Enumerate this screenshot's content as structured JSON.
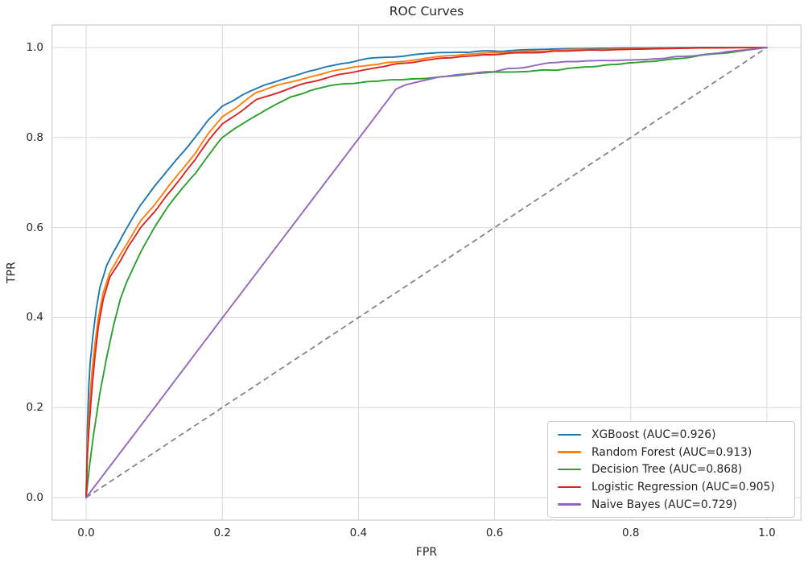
{
  "chart_data": {
    "type": "line",
    "title": "ROC Curves",
    "xlabel": "FPR",
    "ylabel": "TPR",
    "xlim": [
      -0.05,
      1.05
    ],
    "ylim": [
      -0.05,
      1.05
    ],
    "grid": true,
    "legend_position": "lower right",
    "background_color": "#ffffff",
    "grid_color": "#d9d9d9",
    "spine_color": "#cccccc",
    "text_color": "#262626",
    "x_ticks": [
      {
        "value": 0.0,
        "label": "0.0"
      },
      {
        "value": 0.2,
        "label": "0.2"
      },
      {
        "value": 0.4,
        "label": "0.4"
      },
      {
        "value": 0.6,
        "label": "0.6"
      },
      {
        "value": 0.8,
        "label": "0.8"
      },
      {
        "value": 1.0,
        "label": "1.0"
      }
    ],
    "y_ticks": [
      {
        "value": 0.0,
        "label": "0.0"
      },
      {
        "value": 0.2,
        "label": "0.2"
      },
      {
        "value": 0.4,
        "label": "0.4"
      },
      {
        "value": 0.6,
        "label": "0.6"
      },
      {
        "value": 0.8,
        "label": "0.8"
      },
      {
        "value": 1.0,
        "label": "1.0"
      }
    ],
    "series": [
      {
        "name": "XGBoost (AUC=0.926)",
        "model": "XGBoost",
        "auc": 0.926,
        "color": "#1f77b4",
        "dashed": false,
        "in_legend": true,
        "noise": true,
        "noise_from": 0.0,
        "points": [
          [
            0,
            0
          ],
          [
            0.002,
            0.16
          ],
          [
            0.004,
            0.25
          ],
          [
            0.006,
            0.3
          ],
          [
            0.01,
            0.36
          ],
          [
            0.015,
            0.42
          ],
          [
            0.02,
            0.465
          ],
          [
            0.03,
            0.515
          ],
          [
            0.04,
            0.545
          ],
          [
            0.05,
            0.572
          ],
          [
            0.06,
            0.6
          ],
          [
            0.08,
            0.65
          ],
          [
            0.1,
            0.691
          ],
          [
            0.12,
            0.728
          ],
          [
            0.14,
            0.763
          ],
          [
            0.16,
            0.8
          ],
          [
            0.18,
            0.84
          ],
          [
            0.2,
            0.87
          ],
          [
            0.23,
            0.895
          ],
          [
            0.26,
            0.915
          ],
          [
            0.3,
            0.935
          ],
          [
            0.35,
            0.956
          ],
          [
            0.4,
            0.972
          ],
          [
            0.45,
            0.98
          ],
          [
            0.5,
            0.986
          ],
          [
            0.55,
            0.99
          ],
          [
            0.6,
            0.992
          ],
          [
            0.65,
            0.995
          ],
          [
            0.7,
            0.997
          ],
          [
            0.8,
            0.999
          ],
          [
            0.9,
            1
          ],
          [
            1,
            1
          ]
        ]
      },
      {
        "name": "Random Forest (AUC=0.913)",
        "model": "Random Forest",
        "auc": 0.913,
        "color": "#ff7f0e",
        "dashed": false,
        "in_legend": true,
        "noise": true,
        "noise_from": 0.0,
        "points": [
          [
            0,
            0
          ],
          [
            0.002,
            0.12
          ],
          [
            0.005,
            0.2
          ],
          [
            0.008,
            0.27
          ],
          [
            0.012,
            0.33
          ],
          [
            0.018,
            0.4
          ],
          [
            0.025,
            0.455
          ],
          [
            0.035,
            0.5
          ],
          [
            0.05,
            0.539
          ],
          [
            0.06,
            0.565
          ],
          [
            0.08,
            0.615
          ],
          [
            0.1,
            0.65
          ],
          [
            0.12,
            0.69
          ],
          [
            0.14,
            0.727
          ],
          [
            0.16,
            0.765
          ],
          [
            0.18,
            0.81
          ],
          [
            0.2,
            0.846
          ],
          [
            0.22,
            0.865
          ],
          [
            0.25,
            0.9
          ],
          [
            0.28,
            0.915
          ],
          [
            0.3,
            0.923
          ],
          [
            0.33,
            0.935
          ],
          [
            0.36,
            0.947
          ],
          [
            0.4,
            0.958
          ],
          [
            0.45,
            0.968
          ],
          [
            0.5,
            0.977
          ],
          [
            0.55,
            0.984
          ],
          [
            0.6,
            0.988
          ],
          [
            0.65,
            0.991
          ],
          [
            0.7,
            0.994
          ],
          [
            0.8,
            0.997
          ],
          [
            0.9,
            0.999
          ],
          [
            1,
            1
          ]
        ]
      },
      {
        "name": "Decision Tree (AUC=0.868)",
        "model": "Decision Tree",
        "auc": 0.868,
        "color": "#2ca02c",
        "dashed": false,
        "in_legend": true,
        "noise": true,
        "noise_from": 0.0,
        "points": [
          [
            0,
            0
          ],
          [
            0.005,
            0.07
          ],
          [
            0.01,
            0.13
          ],
          [
            0.02,
            0.23
          ],
          [
            0.03,
            0.31
          ],
          [
            0.04,
            0.38
          ],
          [
            0.05,
            0.44
          ],
          [
            0.06,
            0.48
          ],
          [
            0.08,
            0.545
          ],
          [
            0.1,
            0.6
          ],
          [
            0.12,
            0.645
          ],
          [
            0.14,
            0.685
          ],
          [
            0.16,
            0.72
          ],
          [
            0.18,
            0.762
          ],
          [
            0.2,
            0.8
          ],
          [
            0.22,
            0.822
          ],
          [
            0.25,
            0.85
          ],
          [
            0.28,
            0.875
          ],
          [
            0.3,
            0.89
          ],
          [
            0.33,
            0.905
          ],
          [
            0.36,
            0.916
          ],
          [
            0.4,
            0.922
          ],
          [
            0.45,
            0.928
          ],
          [
            0.5,
            0.932
          ],
          [
            0.55,
            0.938
          ],
          [
            0.6,
            0.944
          ],
          [
            0.65,
            0.948
          ],
          [
            0.7,
            0.952
          ],
          [
            0.75,
            0.958
          ],
          [
            0.8,
            0.965
          ],
          [
            0.85,
            0.972
          ],
          [
            0.9,
            0.982
          ],
          [
            0.95,
            0.99
          ],
          [
            1,
            1
          ]
        ]
      },
      {
        "name": "Logistic Regression (AUC=0.905)",
        "model": "Logistic Regression",
        "auc": 0.905,
        "color": "#d62728",
        "dashed": false,
        "in_legend": true,
        "noise": true,
        "noise_from": 0.0,
        "points": [
          [
            0,
            0
          ],
          [
            0.002,
            0.1
          ],
          [
            0.005,
            0.17
          ],
          [
            0.008,
            0.23
          ],
          [
            0.012,
            0.3
          ],
          [
            0.018,
            0.38
          ],
          [
            0.025,
            0.44
          ],
          [
            0.035,
            0.49
          ],
          [
            0.05,
            0.525
          ],
          [
            0.06,
            0.553
          ],
          [
            0.08,
            0.6
          ],
          [
            0.1,
            0.634
          ],
          [
            0.12,
            0.675
          ],
          [
            0.14,
            0.712
          ],
          [
            0.16,
            0.75
          ],
          [
            0.18,
            0.795
          ],
          [
            0.2,
            0.83
          ],
          [
            0.22,
            0.85
          ],
          [
            0.25,
            0.885
          ],
          [
            0.28,
            0.9
          ],
          [
            0.3,
            0.91
          ],
          [
            0.33,
            0.923
          ],
          [
            0.36,
            0.936
          ],
          [
            0.4,
            0.948
          ],
          [
            0.45,
            0.961
          ],
          [
            0.5,
            0.972
          ],
          [
            0.55,
            0.98
          ],
          [
            0.6,
            0.985
          ],
          [
            0.65,
            0.988
          ],
          [
            0.7,
            0.992
          ],
          [
            0.8,
            0.996
          ],
          [
            0.9,
            0.999
          ],
          [
            1,
            1
          ]
        ]
      },
      {
        "name": "Naive Bayes (AUC=0.729)",
        "model": "Naive Bayes",
        "auc": 0.729,
        "color": "#9467bd",
        "dashed": false,
        "in_legend": true,
        "noise": true,
        "noise_from": 0.465,
        "points": [
          [
            0,
            0
          ],
          [
            0.1,
            0.199
          ],
          [
            0.2,
            0.399
          ],
          [
            0.3,
            0.598
          ],
          [
            0.4,
            0.797
          ],
          [
            0.455,
            0.907
          ],
          [
            0.47,
            0.916
          ],
          [
            0.5,
            0.928
          ],
          [
            0.52,
            0.934
          ],
          [
            0.55,
            0.94
          ],
          [
            0.6,
            0.947
          ],
          [
            0.62,
            0.953
          ],
          [
            0.65,
            0.957
          ],
          [
            0.68,
            0.965
          ],
          [
            0.7,
            0.968
          ],
          [
            0.75,
            0.97
          ],
          [
            0.8,
            0.972
          ],
          [
            0.85,
            0.977
          ],
          [
            0.9,
            0.984
          ],
          [
            0.95,
            0.991
          ],
          [
            1,
            1
          ]
        ]
      },
      {
        "name": "chance-diagonal",
        "model": "Chance",
        "color": "#7f7f7f",
        "dashed": true,
        "in_legend": false,
        "noise": false,
        "points": [
          [
            0,
            0
          ],
          [
            1,
            1
          ]
        ]
      }
    ]
  }
}
